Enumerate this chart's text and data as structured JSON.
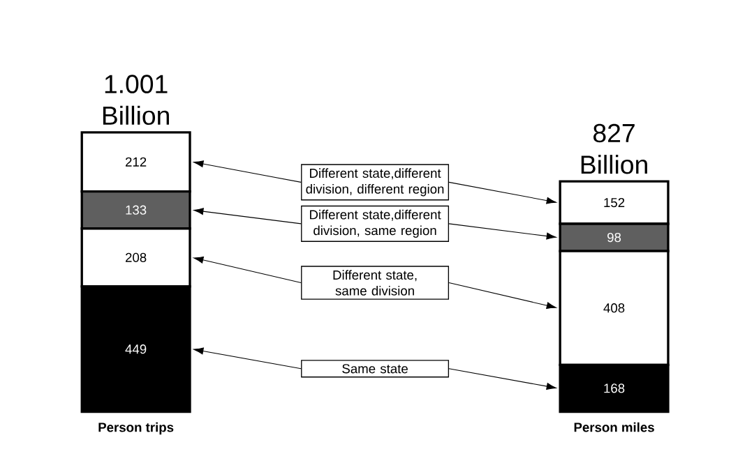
{
  "chart_data": {
    "type": "bar",
    "stacked": true,
    "data_labels": true,
    "categories": [
      "Person trips",
      "Person miles"
    ],
    "totals": [
      "1.001 Billion",
      "827 Billion"
    ],
    "series": [
      {
        "name": "Same state",
        "color": "#000000",
        "values": [
          449,
          168
        ]
      },
      {
        "name": "Different state, same division",
        "color": "#ffffff",
        "values": [
          208,
          408
        ]
      },
      {
        "name": "Different state,different division, same region",
        "color": "#5f5f5f",
        "values": [
          133,
          98
        ]
      },
      {
        "name": "Different state,different division, different region",
        "color": "#ffffff",
        "values": [
          212,
          152
        ]
      }
    ]
  }
}
